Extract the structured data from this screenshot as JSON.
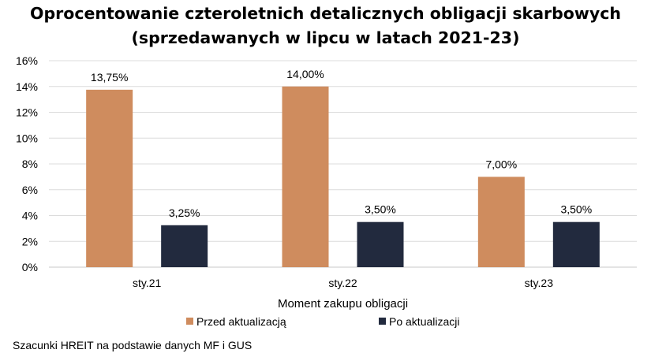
{
  "chart_data": {
    "type": "bar",
    "title_line1": "Oprocentowanie czteroletnich detalicznych obligacji skarbowych",
    "title_line2": "(sprzedawanych w lipcu w latach 2021-23)",
    "xlabel": "Moment zakupu obligacji",
    "ylabel": "",
    "categories": [
      "sty.21",
      "sty.22",
      "sty.23"
    ],
    "ylim": [
      0,
      16
    ],
    "yticks": [
      "0%",
      "2%",
      "4%",
      "6%",
      "8%",
      "10%",
      "12%",
      "14%",
      "16%"
    ],
    "grid": true,
    "legend_position": "bottom",
    "series": [
      {
        "name": "Przed aktualizacją",
        "values": [
          13.75,
          14.0,
          7.0
        ],
        "labels": [
          "13,75%",
          "14,00%",
          "7,00%"
        ],
        "color": "#CF8C5E"
      },
      {
        "name": "Po aktualizacji",
        "values": [
          3.25,
          3.5,
          3.5
        ],
        "labels": [
          "3,25%",
          "3,50%",
          "3,50%"
        ],
        "color": "#222A3E"
      }
    ]
  },
  "source_note": "Szacunki HREIT na podstawie danych MF i GUS"
}
